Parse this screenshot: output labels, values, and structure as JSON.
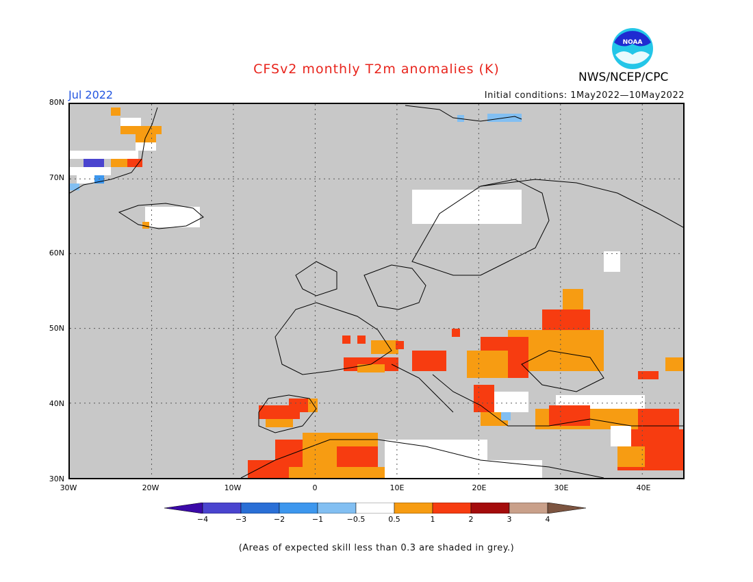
{
  "title": "CFSv2 monthly T2m anomalies (K)",
  "month_label": "Jul 2022",
  "initial_conditions": "Initial conditions: 1May2022—10May2022",
  "agency": "NWS/NCEP/CPC",
  "logo_text": "NOAA",
  "footnote": "(Areas of expected skill less than 0.3 are shaded in grey.)",
  "map": {
    "lon_range": [
      -30,
      45
    ],
    "lat_range": [
      30,
      80
    ],
    "lat_ticks": [
      "80N",
      "70N",
      "60N",
      "50N",
      "40N",
      "30N"
    ],
    "lon_ticks": [
      "30W",
      "20W",
      "10W",
      "0",
      "10E",
      "20E",
      "30E",
      "40E"
    ],
    "gridlines": "dotted",
    "land_outlines": true,
    "background_color": "#c8c8c8"
  },
  "colorbar": {
    "labels": [
      "−4",
      "−3",
      "−2",
      "−1",
      "−0.5",
      "0.5",
      "1",
      "2",
      "3",
      "4"
    ],
    "colors": [
      "#3b0aa8",
      "#4a44cf",
      "#2a6fd6",
      "#3d97ee",
      "#82bff2",
      "#ffffff",
      "#f79c12",
      "#f73c10",
      "#a40c0c",
      "#c9a08a",
      "#7c5440"
    ]
  }
}
